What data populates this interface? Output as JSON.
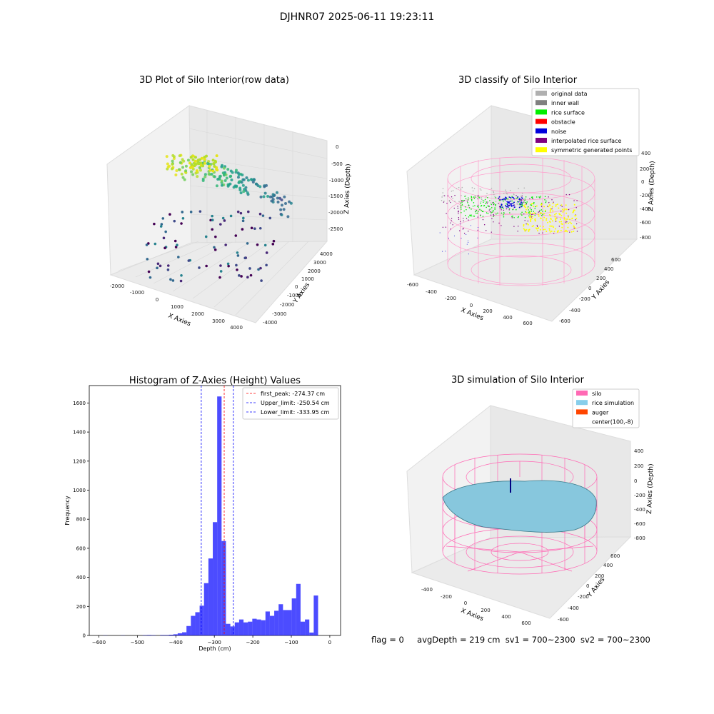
{
  "suptitle": "DJHNR07 2025-06-11 19:23:11",
  "panels": {
    "raw": {
      "title": "3D Plot of Silo Interior(row data)",
      "xlabel": "X Axies",
      "ylabel": "Y Axies",
      "zlabel": "Z Axies (Depth)",
      "xticks": [
        "-2000",
        "-1000",
        "0",
        "1000",
        "2000",
        "3000",
        "4000"
      ],
      "yticks": [
        "-4000",
        "-3000",
        "-2000",
        "-1000",
        "0",
        "1000",
        "2000",
        "3000",
        "4000"
      ],
      "zticks": [
        "0",
        "-500",
        "-1000",
        "-1500",
        "-2000",
        "-2500"
      ]
    },
    "classify": {
      "title": "3D classify of Silo Interior",
      "xlabel": "X Axies",
      "ylabel": "Y Axies",
      "zlabel": "Z Axies (Depth)",
      "xticks": [
        "-600",
        "-400",
        "-200",
        "0",
        "200",
        "400",
        "600"
      ],
      "yticks": [
        "-600",
        "-400",
        "-200",
        "0",
        "200",
        "400",
        "600"
      ],
      "zticks": [
        "200",
        "0",
        "-200",
        "-400",
        "-600",
        "-800"
      ],
      "zticks_top": "400",
      "legend": [
        {
          "label": "original data",
          "color": "#b0b0b0"
        },
        {
          "label": "inner wall",
          "color": "#808080"
        },
        {
          "label": "rice surface",
          "color": "#00ee00"
        },
        {
          "label": "obstacle",
          "color": "#ff0000"
        },
        {
          "label": "noise",
          "color": "#0000dd"
        },
        {
          "label": "interpolated rice surface",
          "color": "#800080"
        },
        {
          "label": "symmetric generated points",
          "color": "#ffff00"
        }
      ]
    },
    "simulation": {
      "title": "3D simulation of Silo Interior",
      "xlabel": "X Axies",
      "ylabel": "Y Axies",
      "zlabel": "Z Axies (Depth)",
      "xticks": [
        "-400",
        "-200",
        "0",
        "200",
        "400",
        "600"
      ],
      "yticks": [
        "-600",
        "-400",
        "-200",
        "0",
        "200",
        "400",
        "600"
      ],
      "zticks": [
        "400",
        "200",
        "0",
        "-200",
        "-400",
        "-600",
        "-800"
      ],
      "legend": [
        {
          "label": "silo",
          "color": "#ff69b4"
        },
        {
          "label": "rice simulation",
          "color": "#87ceeb"
        },
        {
          "label": "auger",
          "color": "#ff4500"
        },
        {
          "label": "center(100,-8)",
          "color": "none"
        }
      ]
    }
  },
  "chart_data": {
    "type": "bar",
    "title": "Histogram of Z-Axies (Height) Values",
    "xlabel": "Depth (cm)",
    "ylabel": "Frequency",
    "xlim": [
      -625,
      28
    ],
    "ylim": [
      0,
      1720
    ],
    "xticks": [
      -600,
      -500,
      -400,
      -300,
      -200,
      -100,
      0
    ],
    "yticks": [
      0,
      200,
      400,
      600,
      800,
      1000,
      1200,
      1400,
      1600
    ],
    "bar_color": "#0000ff",
    "bin_width": 11.4,
    "bins_start": [
      -589,
      -577.6,
      -566.2,
      -554.8,
      -543.4,
      -532,
      -520.6,
      -509.2,
      -497.8,
      -486.4,
      -475,
      -463.6,
      -452.2,
      -440.8,
      -429.4,
      -418,
      -406.6,
      -395.2,
      -383.8,
      -372.4,
      -361,
      -349.6,
      -338.2,
      -326.8,
      -315.4,
      -304,
      -292.6,
      -281.2,
      -269.8,
      -258.4,
      -247,
      -235.6,
      -224.2,
      -212.8,
      -201.4,
      -190,
      -178.6,
      -167.2,
      -155.8,
      -144.4,
      -133,
      -121.6,
      -110.2,
      -98.8,
      -87.4,
      -76,
      -64.6,
      -53.2,
      -41.8,
      -30.4,
      -19,
      -7.6
    ],
    "values": [
      1,
      0,
      0,
      0,
      1,
      0,
      0,
      0,
      0,
      2,
      3,
      2,
      0,
      3,
      3,
      5,
      8,
      15,
      22,
      65,
      135,
      160,
      205,
      360,
      530,
      780,
      1645,
      650,
      80,
      62,
      90,
      110,
      90,
      95,
      115,
      110,
      105,
      165,
      135,
      170,
      215,
      175,
      175,
      255,
      355,
      95,
      110,
      20,
      275,
      0,
      0,
      0
    ],
    "vlines": [
      {
        "label": "first_peak: -274.37 cm",
        "x": -274.37,
        "color": "#ff0000"
      },
      {
        "label": "Upper_limit: -250.54 cm",
        "x": -250.54,
        "color": "#0000ff"
      },
      {
        "label": "Lower_limit: -333.95 cm",
        "x": -333.95,
        "color": "#0000ff"
      }
    ]
  },
  "footer": {
    "flag": "flag = 0",
    "avg": "avgDepth = 219 cm",
    "sv1": "sv1 = 700~2300",
    "sv2": "sv2 = 700~2300"
  }
}
